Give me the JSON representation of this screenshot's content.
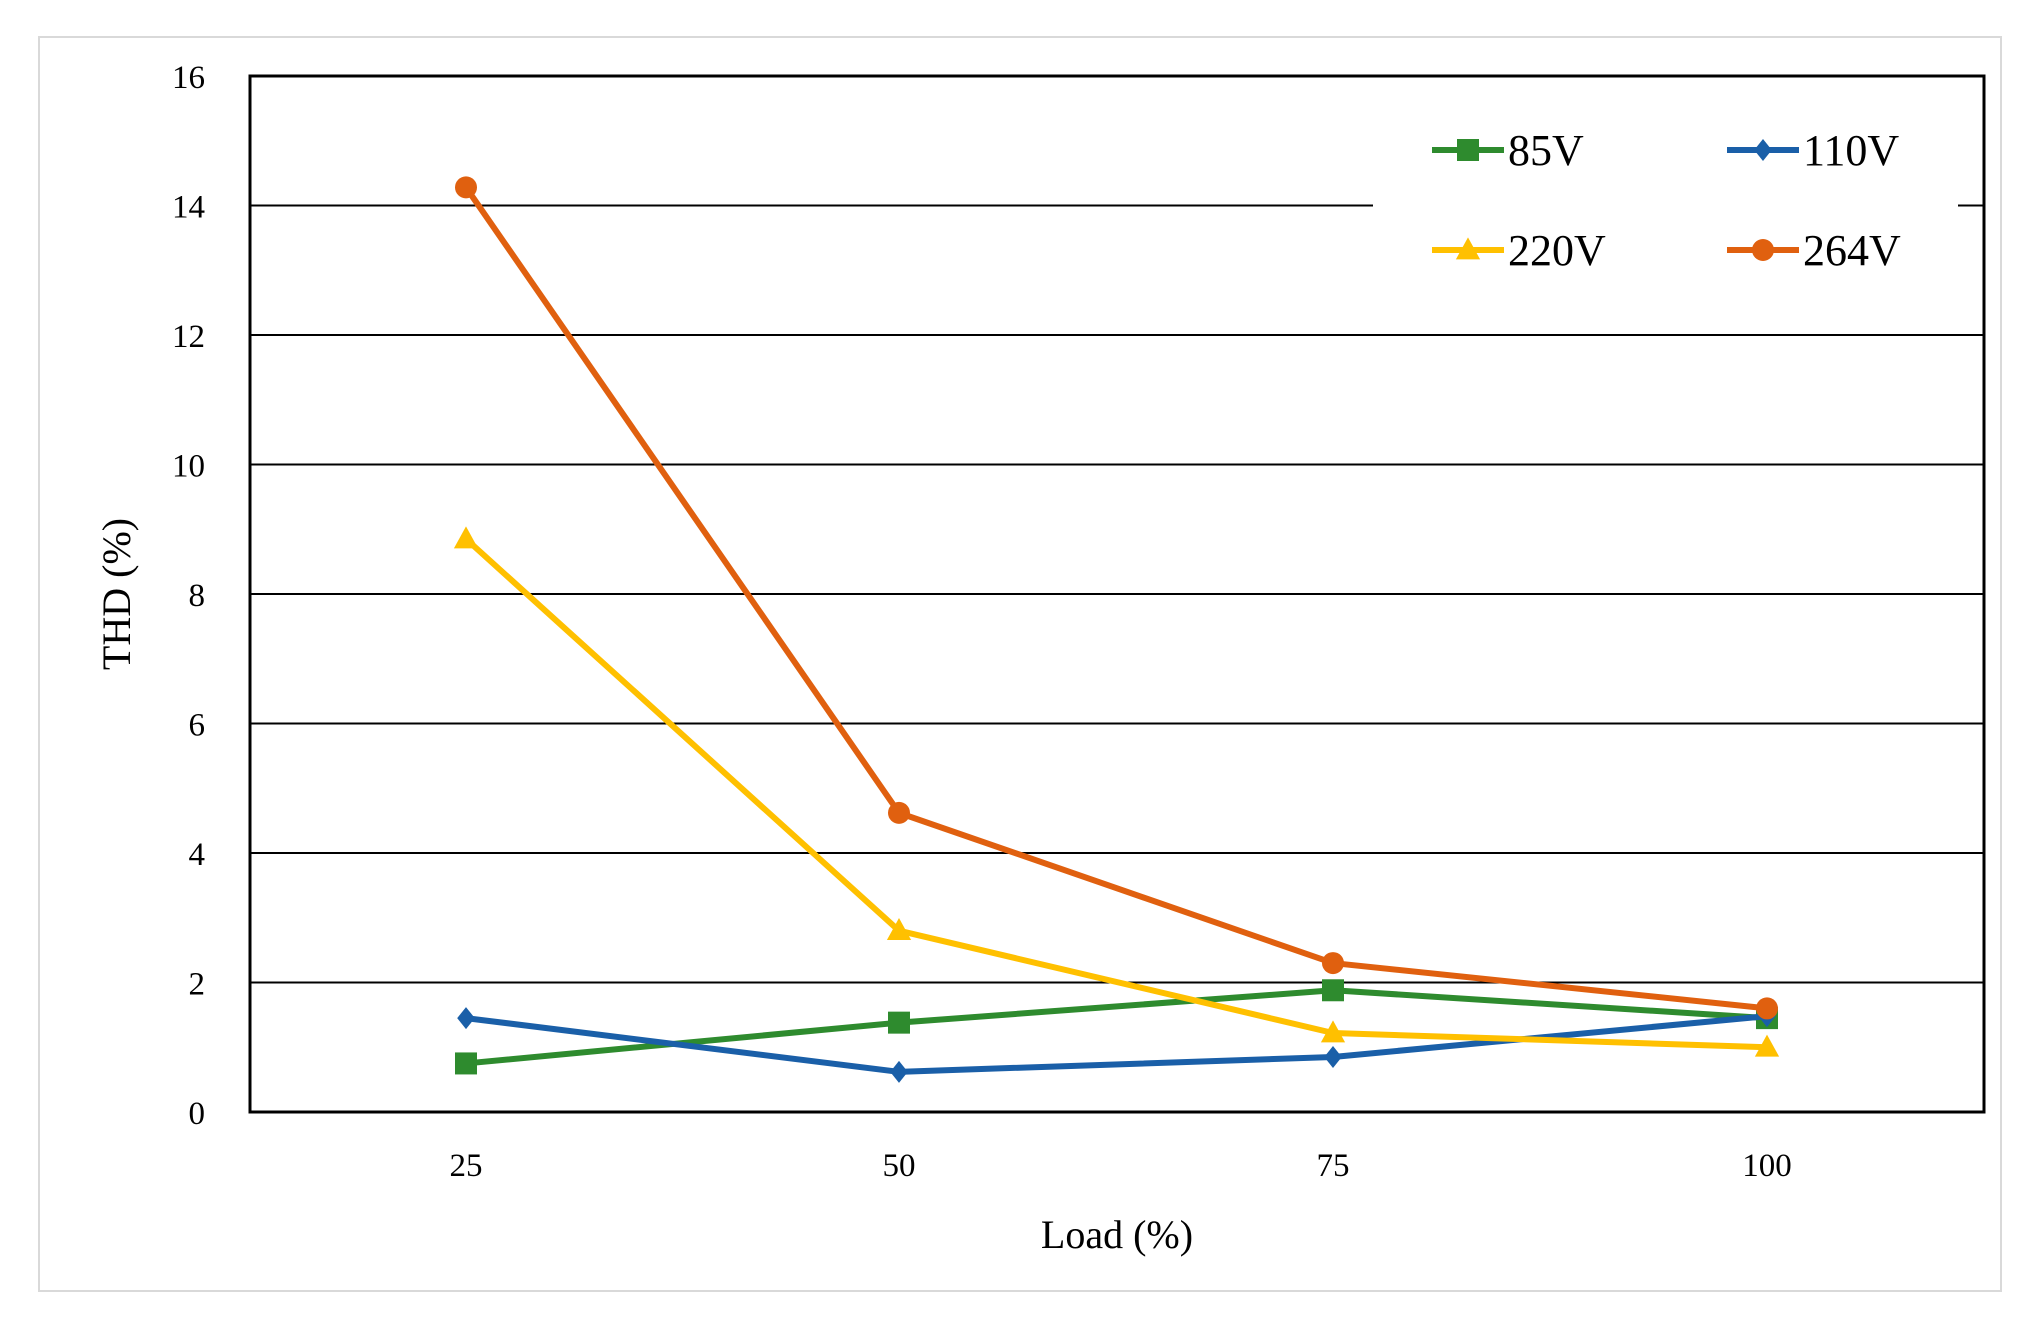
{
  "chart_data": {
    "type": "line",
    "title": "",
    "xlabel": "Load (%)",
    "ylabel": "THD (%)",
    "categories": [
      "25",
      "50",
      "75",
      "100"
    ],
    "ylim": [
      0,
      16
    ],
    "yticks": [
      0,
      2,
      4,
      6,
      8,
      10,
      12,
      14,
      16
    ],
    "grid": true,
    "legend_position": "top-right",
    "series": [
      {
        "name": "85V",
        "color": "#2e8b2e",
        "marker": "square",
        "values": [
          0.75,
          1.38,
          1.88,
          1.45
        ]
      },
      {
        "name": "110V",
        "color": "#1a5fa8",
        "marker": "diamond",
        "values": [
          1.45,
          0.62,
          0.85,
          1.48
        ]
      },
      {
        "name": "220V",
        "color": "#ffc000",
        "marker": "triangle",
        "values": [
          8.85,
          2.8,
          1.22,
          1.0
        ]
      },
      {
        "name": "264V",
        "color": "#e0600f",
        "marker": "circle",
        "values": [
          14.28,
          4.62,
          2.3,
          1.6
        ]
      }
    ]
  }
}
